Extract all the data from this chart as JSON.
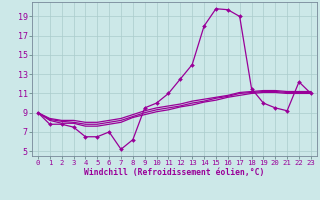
{
  "xlabel": "Windchill (Refroidissement éolien,°C)",
  "background_color": "#cce8e8",
  "line_color": "#990099",
  "grid_color": "#aacccc",
  "xlim": [
    -0.5,
    23.5
  ],
  "ylim": [
    4.5,
    20.5
  ],
  "xticks": [
    0,
    1,
    2,
    3,
    4,
    5,
    6,
    7,
    8,
    9,
    10,
    11,
    12,
    13,
    14,
    15,
    16,
    17,
    18,
    19,
    20,
    21,
    22,
    23
  ],
  "yticks": [
    5,
    7,
    9,
    11,
    13,
    15,
    17,
    19
  ],
  "line1_x": [
    0,
    1,
    2,
    3,
    4,
    5,
    6,
    7,
    8,
    9,
    10,
    11,
    12,
    13,
    14,
    15,
    16,
    17,
    18,
    19,
    20,
    21,
    22,
    23
  ],
  "line1_y": [
    9.0,
    7.8,
    7.8,
    7.5,
    6.5,
    6.5,
    7.0,
    5.2,
    6.2,
    9.5,
    10.0,
    11.0,
    12.5,
    14.0,
    18.0,
    19.8,
    19.7,
    19.0,
    11.5,
    10.0,
    9.5,
    9.2,
    12.2,
    11.0
  ],
  "line2_x": [
    0,
    1,
    2,
    3,
    4,
    5,
    6,
    7,
    8,
    9,
    10,
    11,
    12,
    13,
    14,
    15,
    16,
    17,
    18,
    19,
    20,
    21,
    22,
    23
  ],
  "line2_y": [
    9.0,
    8.2,
    7.9,
    7.9,
    7.6,
    7.6,
    7.8,
    8.0,
    8.5,
    8.8,
    9.1,
    9.3,
    9.6,
    9.8,
    10.1,
    10.3,
    10.6,
    10.8,
    11.0,
    11.1,
    11.1,
    11.0,
    11.0,
    11.0
  ],
  "line3_x": [
    0,
    1,
    2,
    3,
    4,
    5,
    6,
    7,
    8,
    9,
    10,
    11,
    12,
    13,
    14,
    15,
    16,
    17,
    18,
    19,
    20,
    21,
    22,
    23
  ],
  "line3_y": [
    9.0,
    8.3,
    8.1,
    8.0,
    7.8,
    7.8,
    8.0,
    8.2,
    8.6,
    9.0,
    9.3,
    9.5,
    9.7,
    10.0,
    10.2,
    10.5,
    10.7,
    11.0,
    11.1,
    11.2,
    11.2,
    11.1,
    11.1,
    11.1
  ],
  "line4_x": [
    0,
    1,
    2,
    3,
    4,
    5,
    6,
    7,
    8,
    9,
    10,
    11,
    12,
    13,
    14,
    15,
    16,
    17,
    18,
    19,
    20,
    21,
    22,
    23
  ],
  "line4_y": [
    9.0,
    8.4,
    8.2,
    8.2,
    8.0,
    8.0,
    8.2,
    8.4,
    8.8,
    9.2,
    9.5,
    9.7,
    9.9,
    10.2,
    10.4,
    10.6,
    10.8,
    11.1,
    11.2,
    11.3,
    11.3,
    11.2,
    11.2,
    11.2
  ]
}
